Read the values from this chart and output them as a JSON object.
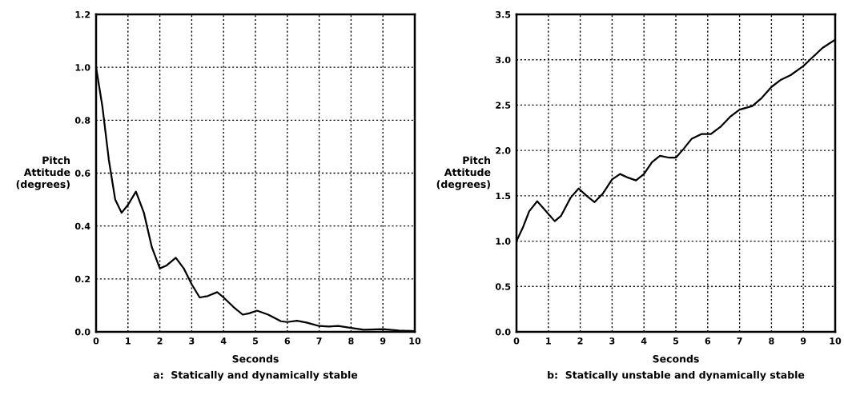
{
  "chart_data": [
    {
      "type": "line",
      "xlabel": "Seconds",
      "ylabel": "Pitch\nAttitude\n(degrees)",
      "annotations": [
        "a:  Statically and dynamically stable"
      ],
      "xlim": [
        0,
        10
      ],
      "ylim": [
        0,
        1.2
      ],
      "xticks": [
        0,
        1,
        2,
        3,
        4,
        5,
        6,
        7,
        8,
        9,
        10
      ],
      "yticks": [
        {
          "value": 0,
          "label": "0.0"
        },
        0.2,
        0.4,
        0.6,
        0.8,
        {
          "value": 1,
          "label": "1.0"
        },
        1.2
      ],
      "grid": true,
      "line_style": "solid",
      "marker": "none",
      "series": [
        {
          "color": "#000000",
          "x": [
            0,
            0.2,
            0.4,
            0.6,
            0.8,
            1.0,
            1.25,
            1.5,
            1.75,
            2.0,
            2.2,
            2.5,
            2.75,
            3.0,
            3.25,
            3.5,
            3.8,
            4.0,
            4.3,
            4.6,
            4.8,
            5.05,
            5.4,
            5.8,
            6.0,
            6.3,
            6.6,
            7.0,
            7.3,
            7.6,
            8.0,
            8.4,
            9.0,
            9.5,
            10
          ],
          "values": [
            1.0,
            0.85,
            0.65,
            0.5,
            0.45,
            0.48,
            0.53,
            0.45,
            0.32,
            0.24,
            0.25,
            0.28,
            0.24,
            0.18,
            0.13,
            0.135,
            0.15,
            0.13,
            0.095,
            0.065,
            0.07,
            0.08,
            0.065,
            0.04,
            0.037,
            0.042,
            0.035,
            0.022,
            0.02,
            0.022,
            0.015,
            0.008,
            0.01,
            0.005,
            0.003
          ]
        }
      ]
    },
    {
      "type": "line",
      "xlabel": "Seconds",
      "ylabel": "Pitch\nAttitude\n(degrees)",
      "annotations": [
        "b:  Statically unstable and dynamically stable"
      ],
      "xlim": [
        0,
        10
      ],
      "ylim": [
        0,
        3.5
      ],
      "xticks": [
        0,
        1,
        2,
        3,
        4,
        5,
        6,
        7,
        8,
        9,
        10
      ],
      "yticks": [
        {
          "value": 0,
          "label": "0.0"
        },
        0.5,
        {
          "value": 1,
          "label": "1.0"
        },
        1.5,
        {
          "value": 2,
          "label": "2.0"
        },
        2.5,
        {
          "value": 3,
          "label": "3.0"
        },
        3.5
      ],
      "grid": true,
      "line_style": "solid",
      "marker": "none",
      "series": [
        {
          "color": "#000000",
          "x": [
            0,
            0.2,
            0.4,
            0.65,
            0.9,
            1.2,
            1.4,
            1.7,
            1.95,
            2.2,
            2.45,
            2.7,
            3.0,
            3.25,
            3.5,
            3.75,
            4.0,
            4.25,
            4.5,
            4.8,
            5.0,
            5.25,
            5.5,
            5.8,
            6.1,
            6.4,
            6.7,
            7.0,
            7.4,
            7.7,
            8.0,
            8.3,
            8.6,
            9.0,
            9.3,
            9.6,
            10
          ],
          "values": [
            1.0,
            1.15,
            1.33,
            1.44,
            1.34,
            1.22,
            1.28,
            1.48,
            1.58,
            1.5,
            1.43,
            1.52,
            1.68,
            1.74,
            1.7,
            1.67,
            1.74,
            1.87,
            1.94,
            1.92,
            1.92,
            2.02,
            2.13,
            2.18,
            2.18,
            2.26,
            2.37,
            2.45,
            2.49,
            2.58,
            2.7,
            2.78,
            2.83,
            2.93,
            3.03,
            3.13,
            3.22
          ]
        }
      ]
    }
  ]
}
